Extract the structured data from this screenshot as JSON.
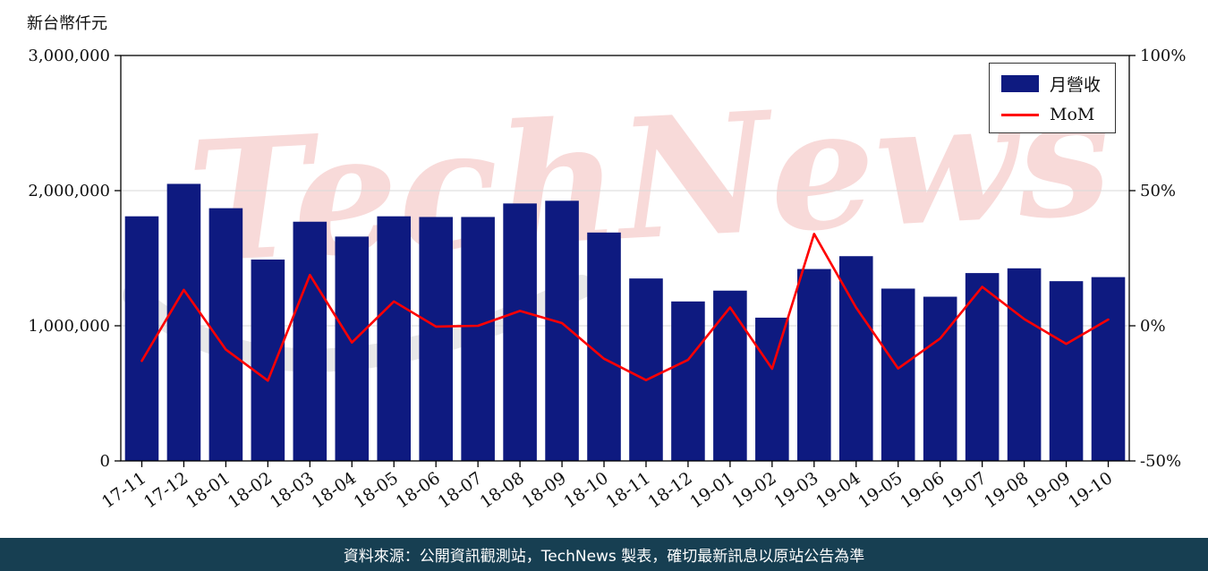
{
  "unit_label": "新台幣仟元",
  "watermark": "TechNews",
  "legend": {
    "revenue": "月營收",
    "mom": "MoM"
  },
  "footer": {
    "text": "資料來源：公開資訊觀測站，TechNews 製表，確切最新訊息以原站公告為準"
  },
  "colors": {
    "bar": "#0e1a80",
    "line": "#ff0000",
    "grid": "#d9d9d9",
    "footer_bg": "#173f52",
    "watermark": "#e05a55"
  },
  "chart_data": {
    "type": "bar",
    "categories": [
      "17-11",
      "17-12",
      "18-01",
      "18-02",
      "18-03",
      "18-04",
      "18-05",
      "18-06",
      "18-07",
      "18-08",
      "18-09",
      "18-10",
      "18-11",
      "18-12",
      "19-01",
      "19-02",
      "19-03",
      "19-04",
      "19-05",
      "19-06",
      "19-07",
      "19-08",
      "19-09",
      "19-10"
    ],
    "series": [
      {
        "name": "月營收",
        "type": "bar",
        "axis": "left",
        "values": [
          1810000,
          2050000,
          1870000,
          1490000,
          1770000,
          1660000,
          1810000,
          1805000,
          1805000,
          1905000,
          1925000,
          1690000,
          1350000,
          1180000,
          1260000,
          1060000,
          1420000,
          1515000,
          1275000,
          1215000,
          1390000,
          1425000,
          1330000,
          1360000
        ]
      },
      {
        "name": "MoM",
        "type": "line",
        "axis": "right",
        "values": [
          -13.0,
          13.3,
          -8.8,
          -20.3,
          18.8,
          -6.2,
          9.0,
          -0.3,
          0.0,
          5.5,
          1.0,
          -12.2,
          -20.1,
          -12.6,
          6.8,
          -15.9,
          34.0,
          6.7,
          -15.8,
          -4.7,
          14.4,
          2.5,
          -6.7,
          2.3
        ]
      }
    ],
    "title": "",
    "xlabel": "",
    "ylabel_left": "新台幣仟元",
    "left_axis": {
      "range": [
        0,
        3000000
      ],
      "ticks": [
        0,
        1000000,
        2000000,
        3000000
      ]
    },
    "right_axis": {
      "range": [
        -50,
        100
      ],
      "ticks": [
        -50,
        0,
        50,
        100
      ],
      "unit": "%"
    },
    "grid": "horizontal",
    "legend_position": "top-right"
  }
}
